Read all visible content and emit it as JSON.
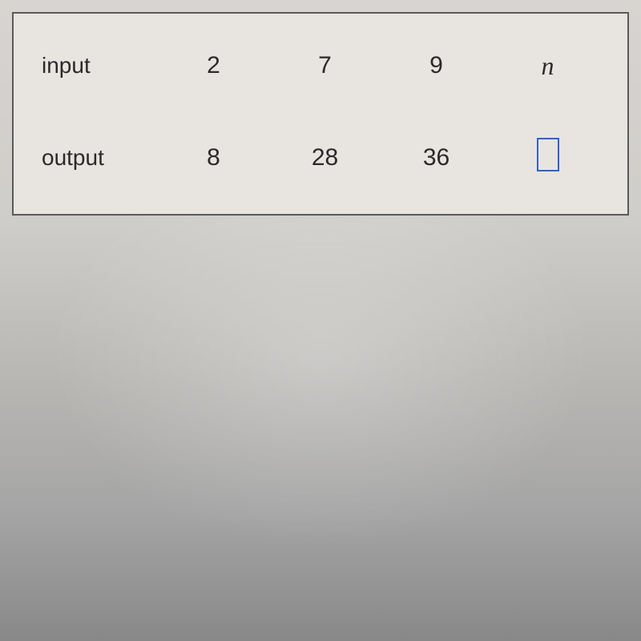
{
  "table": {
    "type": "table",
    "columns": [
      "label",
      "col1",
      "col2",
      "col3",
      "col4"
    ],
    "rows": [
      {
        "label": "input",
        "values": [
          "2",
          "7",
          "9",
          "n"
        ]
      },
      {
        "label": "output",
        "values": [
          "8",
          "28",
          "36",
          ""
        ]
      }
    ],
    "border_color": "#5a5a5a",
    "background_color": "#e8e4e0",
    "font_color": "#2a2a2a",
    "label_fontsize": 28,
    "value_fontsize": 30,
    "input_box_border_color": "#3060d0",
    "input_box_width": 28,
    "input_box_height": 42,
    "italic_variable": true
  },
  "page": {
    "background_gradient_top": "#d8d4d0",
    "background_gradient_bottom": "#888888"
  }
}
